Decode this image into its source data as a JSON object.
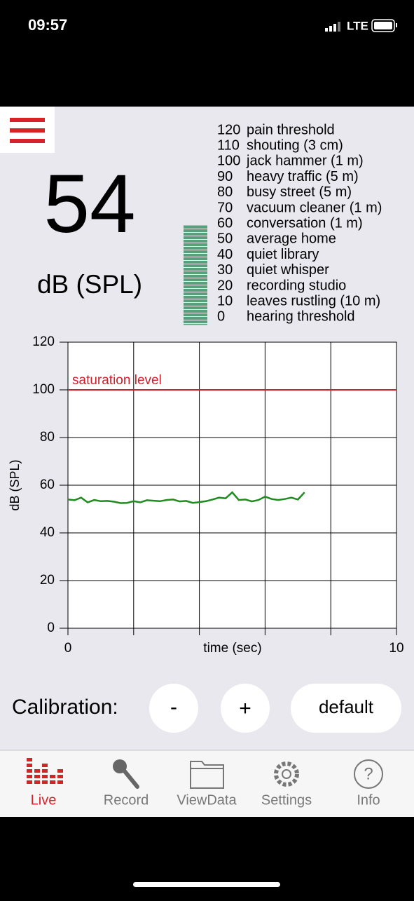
{
  "status_bar": {
    "time": "09:57",
    "network": "LTE"
  },
  "reading": {
    "value": 54,
    "unit": "dB (SPL)",
    "meter_color": "#5a9e7c"
  },
  "reference_levels": [
    {
      "level": 120,
      "label": "pain threshold"
    },
    {
      "level": 110,
      "label": "shouting (3 cm)"
    },
    {
      "level": 100,
      "label": "jack hammer (1 m)"
    },
    {
      "level": 90,
      "label": "heavy traffic (5 m)"
    },
    {
      "level": 80,
      "label": "busy street (5 m)"
    },
    {
      "level": 70,
      "label": "vacuum cleaner (1 m)"
    },
    {
      "level": 60,
      "label": "conversation (1 m)"
    },
    {
      "level": 50,
      "label": "average home"
    },
    {
      "level": 40,
      "label": "quiet library"
    },
    {
      "level": 30,
      "label": "quiet whisper"
    },
    {
      "level": 20,
      "label": "recording studio"
    },
    {
      "level": 10,
      "label": "leaves rustling (10 m)"
    },
    {
      "level": 0,
      "label": "hearing threshold"
    }
  ],
  "chart_data": {
    "type": "line",
    "xlabel": "time (sec)",
    "ylabel": "dB (SPL)",
    "x": [
      0,
      0.2,
      0.4,
      0.6,
      0.8,
      1.0,
      1.2,
      1.4,
      1.6,
      1.8,
      2.0,
      2.2,
      2.4,
      2.6,
      2.8,
      3.0,
      3.2,
      3.4,
      3.6,
      3.8,
      4.0,
      4.2,
      4.4,
      4.6,
      4.8,
      5.0,
      5.2,
      5.4,
      5.6,
      5.8,
      6.0,
      6.2,
      6.4,
      6.6,
      6.8,
      7.0,
      7.2
    ],
    "values": [
      54,
      53.7,
      54.8,
      52.8,
      53.8,
      53.3,
      53.4,
      53.1,
      52.5,
      52.6,
      53.3,
      52.8,
      53.7,
      53.5,
      53.3,
      53.8,
      54.0,
      53.2,
      53.4,
      52.6,
      52.9,
      53.3,
      54.0,
      54.8,
      54.5,
      57.0,
      53.8,
      54.0,
      53.2,
      53.8,
      55.2,
      54.2,
      53.8,
      54.2,
      54.8,
      54.0,
      57.0
    ],
    "color": "#1e8c1e",
    "xlim": [
      0,
      10
    ],
    "xticks": [
      0,
      10
    ],
    "x_grid": [
      0,
      2,
      4,
      6,
      8,
      10
    ],
    "ylim": [
      0,
      120
    ],
    "yticks": [
      0,
      20,
      40,
      60,
      80,
      100,
      120
    ],
    "grid": true,
    "reference_line": {
      "value": 100,
      "label": "saturation level",
      "color": "#d0202a"
    }
  },
  "calibration": {
    "label": "Calibration:",
    "buttons": [
      "-",
      "+",
      "default"
    ]
  },
  "tabs": [
    {
      "label": "Live",
      "active": true
    },
    {
      "label": "Record"
    },
    {
      "label": "ViewData"
    },
    {
      "label": "Settings"
    },
    {
      "label": "Info"
    }
  ]
}
